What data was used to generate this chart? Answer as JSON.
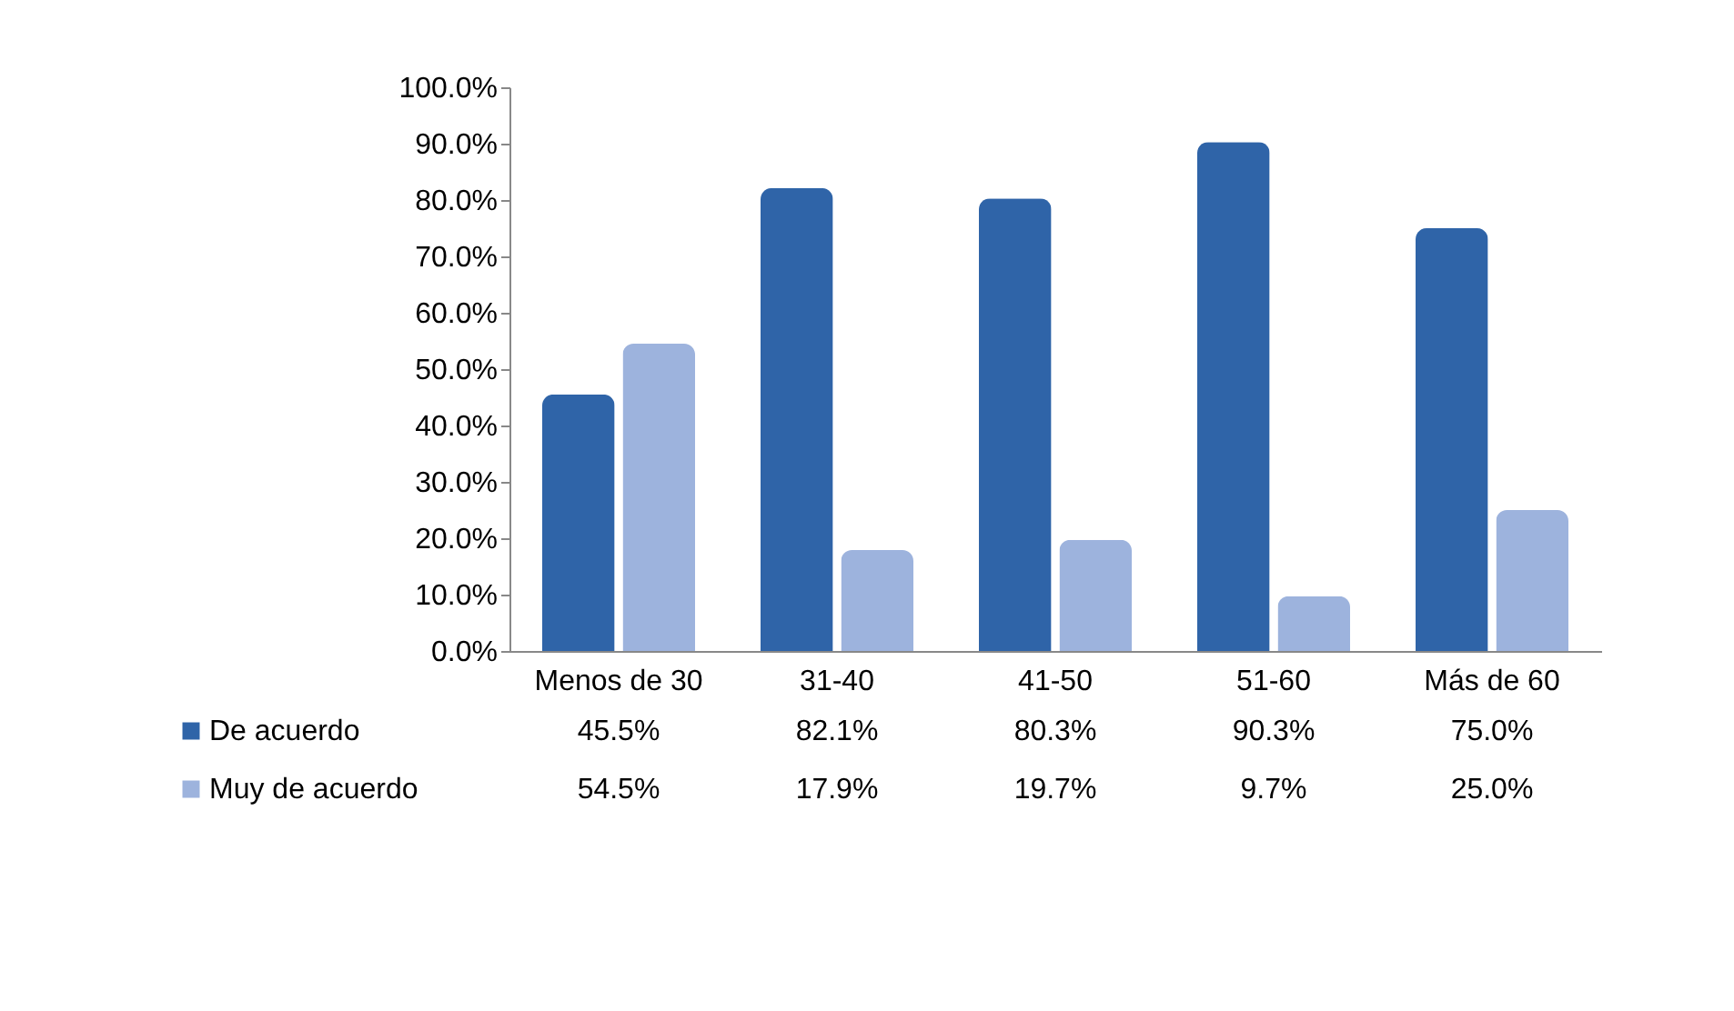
{
  "chart_data": {
    "type": "bar",
    "categories": [
      "Menos de 30",
      "31-40",
      "41-50",
      "51-60",
      "Más de 60"
    ],
    "series": [
      {
        "name": "De acuerdo",
        "color": "#2f64a8",
        "values": [
          45.5,
          82.1,
          80.3,
          90.3,
          75.0
        ],
        "value_labels": [
          "45.5%",
          "82.1%",
          "80.3%",
          "90.3%",
          "75.0%"
        ]
      },
      {
        "name": "Muy de acuerdo",
        "color": "#9db3dd",
        "values": [
          54.5,
          17.9,
          19.7,
          9.7,
          25.0
        ],
        "value_labels": [
          "54.5%",
          "17.9%",
          "19.7%",
          "9.7%",
          "25.0%"
        ]
      }
    ],
    "ylim": [
      0,
      100
    ],
    "yticks": [
      {
        "value": 0,
        "label": "0.0%"
      },
      {
        "value": 10,
        "label": "10.0%"
      },
      {
        "value": 20,
        "label": "20.0%"
      },
      {
        "value": 30,
        "label": "30.0%"
      },
      {
        "value": 40,
        "label": "40.0%"
      },
      {
        "value": 50,
        "label": "50.0%"
      },
      {
        "value": 60,
        "label": "60.0%"
      },
      {
        "value": 70,
        "label": "70.0%"
      },
      {
        "value": 80,
        "label": "80.0%"
      },
      {
        "value": 90,
        "label": "90.0%"
      },
      {
        "value": 100,
        "label": "100.0%"
      }
    ],
    "grid": false,
    "legend": "bottom"
  }
}
